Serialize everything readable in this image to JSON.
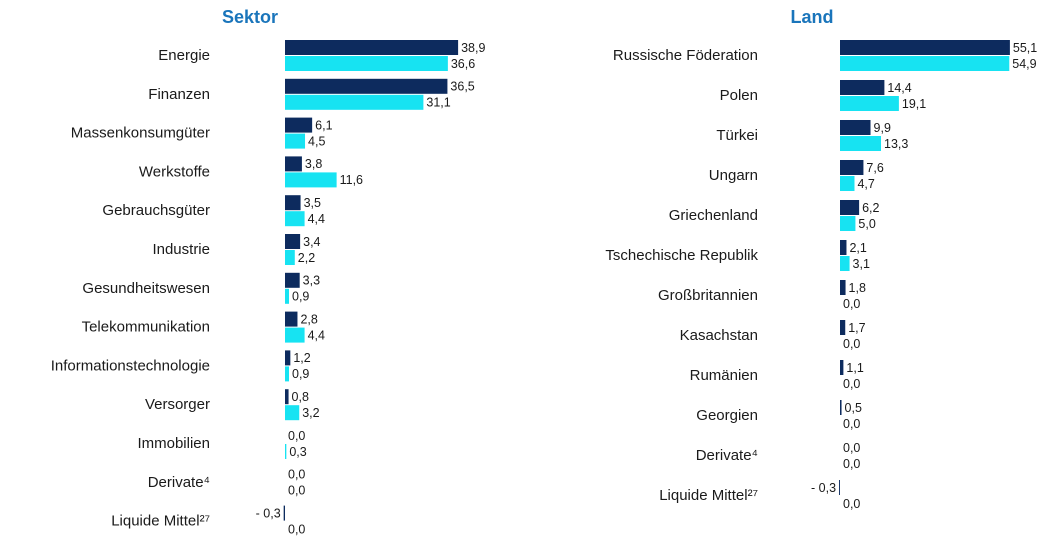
{
  "chart_data": [
    {
      "type": "bar",
      "orientation": "horizontal",
      "title": "Sektor",
      "categories": [
        "Energie",
        "Finanzen",
        "Massenkonsumgüter",
        "Werkstoffe",
        "Gebrauchsgüter",
        "Industrie",
        "Gesundheitswesen",
        "Telekommunikation",
        "Informationstechnologie",
        "Versorger",
        "Immobilien",
        "Derivate⁴",
        "Liquide Mittel²⁷"
      ],
      "xlim": [
        0,
        40
      ],
      "series": [
        {
          "color": "#0d2b5e",
          "values": [
            38.9,
            36.5,
            6.1,
            3.8,
            3.5,
            3.4,
            3.3,
            2.8,
            1.2,
            0.8,
            0.0,
            0.0,
            -0.3
          ],
          "value_labels": [
            "38,9",
            "36,5",
            "6,1",
            "3,8",
            "3,5",
            "3,4",
            "3,3",
            "2,8",
            "1,2",
            "0,8",
            "0,0",
            "0,0",
            "- 0,3"
          ]
        },
        {
          "color": "#17e3f2",
          "values": [
            36.6,
            31.1,
            4.5,
            11.6,
            4.4,
            2.2,
            0.9,
            4.4,
            0.9,
            3.2,
            0.3,
            0.0,
            0.0
          ],
          "value_labels": [
            "36,6",
            "31,1",
            "4,5",
            "11,6",
            "4,4",
            "2,2",
            "0,9",
            "4,4",
            "0,9",
            "3,2",
            "0,3",
            "0,0",
            "0,0"
          ]
        }
      ]
    },
    {
      "type": "bar",
      "orientation": "horizontal",
      "title": "Land",
      "categories": [
        "Russische Föderation",
        "Polen",
        "Türkei",
        "Ungarn",
        "Griechenland",
        "Tschechische Republik",
        "Großbritannien",
        "Kasachstan",
        "Rumänien",
        "Georgien",
        "Derivate⁴",
        "Liquide Mittel²⁷"
      ],
      "xlim": [
        0,
        60
      ],
      "series": [
        {
          "color": "#0d2b5e",
          "values": [
            55.1,
            14.4,
            9.9,
            7.6,
            6.2,
            2.1,
            1.8,
            1.7,
            1.1,
            0.5,
            0.0,
            -0.3
          ],
          "value_labels": [
            "55,1",
            "14,4",
            "9,9",
            "7,6",
            "6,2",
            "2,1",
            "1,8",
            "1,7",
            "1,1",
            "0,5",
            "0,0",
            "- 0,3"
          ]
        },
        {
          "color": "#17e3f2",
          "values": [
            54.9,
            19.1,
            13.3,
            4.7,
            5.0,
            3.1,
            0.0,
            0.0,
            0.0,
            0.0,
            0.0,
            0.0
          ],
          "value_labels": [
            "54,9",
            "19,1",
            "13,3",
            "4,7",
            "5,0",
            "3,1",
            "0,0",
            "0,0",
            "0,0",
            "0,0",
            "0,0",
            "0,0"
          ]
        }
      ]
    }
  ]
}
